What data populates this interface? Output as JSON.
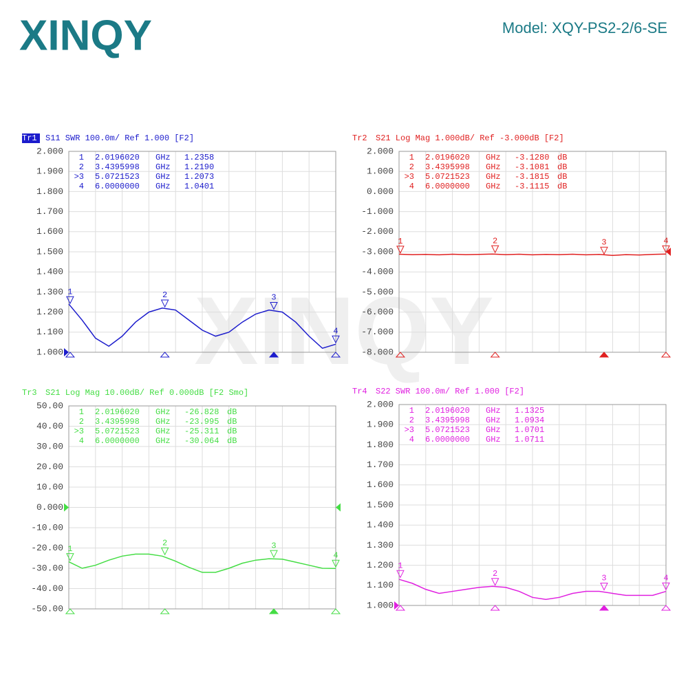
{
  "header": {
    "logo": "XINQY",
    "model": "Model:  XQY-PS2-2/6-SE"
  },
  "watermark": "XINQY",
  "chart_data": [
    {
      "type": "line",
      "trace": "Tr1",
      "trace_highlight": true,
      "title": "S11 SWR 100.0m/ Ref 1.000 [F2]",
      "color": "#1c1ccc",
      "x": [
        2.0,
        2.2,
        2.4,
        2.6,
        2.8,
        3.0,
        3.2,
        3.4,
        3.6,
        3.8,
        4.0,
        4.2,
        4.4,
        4.6,
        4.8,
        5.0,
        5.2,
        5.4,
        5.6,
        5.8,
        6.0
      ],
      "values": [
        1.24,
        1.16,
        1.07,
        1.03,
        1.08,
        1.15,
        1.2,
        1.22,
        1.21,
        1.16,
        1.11,
        1.08,
        1.1,
        1.15,
        1.19,
        1.21,
        1.2,
        1.15,
        1.08,
        1.02,
        1.04
      ],
      "xlim": [
        2,
        6
      ],
      "ylim": [
        1,
        2
      ],
      "grid": true,
      "ref_value": 1,
      "ref_side": "left",
      "yticks": [
        {
          "value": 2,
          "label": "2.000"
        },
        {
          "value": 1.9,
          "label": "1.900"
        },
        {
          "value": 1.8,
          "label": "1.800"
        },
        {
          "value": 1.7,
          "label": "1.700"
        },
        {
          "value": 1.6,
          "label": "1.600"
        },
        {
          "value": 1.5,
          "label": "1.500"
        },
        {
          "value": 1.4,
          "label": "1.400"
        },
        {
          "value": 1.3,
          "label": "1.300"
        },
        {
          "value": 1.2,
          "label": "1.200"
        },
        {
          "value": 1.1,
          "label": "1.100"
        },
        {
          "value": 1,
          "label": "1.000"
        }
      ],
      "markers": [
        {
          "row_label": "1",
          "label": "1",
          "freq": "2.0196020",
          "unit": "GHz",
          "value": "1.2358"
        },
        {
          "row_label": "2",
          "label": "2",
          "freq": "3.4395998",
          "unit": "GHz",
          "value": "1.2190"
        },
        {
          "row_label": ">3",
          "label": "3",
          "freq": "5.0721523",
          "unit": "GHz",
          "value": "1.2073"
        },
        {
          "row_label": "4",
          "label": "4",
          "freq": "6.0000000",
          "unit": "GHz",
          "value": "1.0401"
        }
      ]
    },
    {
      "type": "line",
      "trace": "Tr2",
      "trace_highlight": false,
      "title": "S21 Log Mag 1.000dB/ Ref -3.000dB [F2]",
      "color": "#e02020",
      "x": [
        2.0,
        2.2,
        2.4,
        2.6,
        2.8,
        3.0,
        3.2,
        3.4,
        3.6,
        3.8,
        4.0,
        4.2,
        4.4,
        4.6,
        4.8,
        5.0,
        5.2,
        5.4,
        5.6,
        5.8,
        6.0
      ],
      "values": [
        -3.12,
        -3.14,
        -3.13,
        -3.15,
        -3.12,
        -3.14,
        -3.13,
        -3.11,
        -3.14,
        -3.12,
        -3.15,
        -3.13,
        -3.14,
        -3.12,
        -3.15,
        -3.13,
        -3.18,
        -3.14,
        -3.16,
        -3.13,
        -3.11
      ],
      "xlim": [
        2,
        6
      ],
      "ylim": [
        -8,
        2
      ],
      "grid": true,
      "ref_value": -3,
      "ref_side": "right",
      "yticks": [
        {
          "value": 2,
          "label": "2.000"
        },
        {
          "value": 1,
          "label": "1.000"
        },
        {
          "value": 0,
          "label": "0.000"
        },
        {
          "value": -1,
          "label": "-1.000"
        },
        {
          "value": -2,
          "label": "-2.000"
        },
        {
          "value": -3,
          "label": "-3.000"
        },
        {
          "value": -4,
          "label": "-4.000"
        },
        {
          "value": -5,
          "label": "-5.000"
        },
        {
          "value": -6,
          "label": "-6.000"
        },
        {
          "value": -7,
          "label": "-7.000"
        },
        {
          "value": -8,
          "label": "-8.000"
        }
      ],
      "markers": [
        {
          "row_label": "1",
          "label": "1",
          "freq": "2.0196020",
          "unit": "GHz",
          "value": "-3.1280",
          "value_unit": "dB"
        },
        {
          "row_label": "2",
          "label": "2",
          "freq": "3.4395998",
          "unit": "GHz",
          "value": "-3.1081",
          "value_unit": "dB"
        },
        {
          "row_label": ">3",
          "label": "3",
          "freq": "5.0721523",
          "unit": "GHz",
          "value": "-3.1815",
          "value_unit": "dB"
        },
        {
          "row_label": "4",
          "label": "4",
          "freq": "6.0000000",
          "unit": "GHz",
          "value": "-3.1115",
          "value_unit": "dB"
        }
      ]
    },
    {
      "type": "line",
      "trace": "Tr3",
      "trace_highlight": false,
      "title": "S21 Log Mag 10.00dB/ Ref 0.000dB [F2 Smo]",
      "color": "#44dd44",
      "x": [
        2.0,
        2.2,
        2.4,
        2.6,
        2.8,
        3.0,
        3.2,
        3.4,
        3.6,
        3.8,
        4.0,
        4.2,
        4.4,
        4.6,
        4.8,
        5.0,
        5.2,
        5.4,
        5.6,
        5.8,
        6.0
      ],
      "values": [
        -26.8,
        -30,
        -28.5,
        -26,
        -24,
        -23,
        -23,
        -24,
        -26.5,
        -29.5,
        -32,
        -32,
        -30,
        -27.5,
        -26,
        -25.3,
        -25.5,
        -27,
        -28.5,
        -30,
        -30.1
      ],
      "xlim": [
        2,
        6
      ],
      "ylim": [
        -50,
        50
      ],
      "grid": true,
      "ref_value": 0,
      "ref_side": "both",
      "yticks": [
        {
          "value": 50,
          "label": "50.00"
        },
        {
          "value": 40,
          "label": "40.00"
        },
        {
          "value": 30,
          "label": "30.00"
        },
        {
          "value": 20,
          "label": "20.00"
        },
        {
          "value": 10,
          "label": "10.00"
        },
        {
          "value": 0,
          "label": "0.000"
        },
        {
          "value": -10,
          "label": "-10.00"
        },
        {
          "value": -20,
          "label": "-20.00"
        },
        {
          "value": -30,
          "label": "-30.00"
        },
        {
          "value": -40,
          "label": "-40.00"
        },
        {
          "value": -50,
          "label": "-50.00"
        }
      ],
      "markers": [
        {
          "row_label": "1",
          "label": "1",
          "freq": "2.0196020",
          "unit": "GHz",
          "value": "-26.828",
          "value_unit": "dB"
        },
        {
          "row_label": "2",
          "label": "2",
          "freq": "3.4395998",
          "unit": "GHz",
          "value": "-23.995",
          "value_unit": "dB"
        },
        {
          "row_label": ">3",
          "label": "3",
          "freq": "5.0721523",
          "unit": "GHz",
          "value": "-25.311",
          "value_unit": "dB"
        },
        {
          "row_label": "4",
          "label": "4",
          "freq": "6.0000000",
          "unit": "GHz",
          "value": "-30.064",
          "value_unit": "dB"
        }
      ]
    },
    {
      "type": "line",
      "trace": "Tr4",
      "trace_highlight": false,
      "title": "S22 SWR 100.0m/ Ref 1.000 [F2]",
      "color": "#e020e0",
      "x": [
        2.0,
        2.2,
        2.4,
        2.6,
        2.8,
        3.0,
        3.2,
        3.4,
        3.6,
        3.8,
        4.0,
        4.2,
        4.4,
        4.6,
        4.8,
        5.0,
        5.2,
        5.4,
        5.6,
        5.8,
        6.0
      ],
      "values": [
        1.13,
        1.11,
        1.08,
        1.06,
        1.07,
        1.08,
        1.09,
        1.095,
        1.09,
        1.07,
        1.04,
        1.03,
        1.04,
        1.06,
        1.07,
        1.07,
        1.06,
        1.05,
        1.05,
        1.05,
        1.07
      ],
      "xlim": [
        2,
        6
      ],
      "ylim": [
        1,
        2
      ],
      "grid": true,
      "ref_value": 1,
      "ref_side": "left",
      "yticks": [
        {
          "value": 2,
          "label": "2.000"
        },
        {
          "value": 1.9,
          "label": "1.900"
        },
        {
          "value": 1.8,
          "label": "1.800"
        },
        {
          "value": 1.7,
          "label": "1.700"
        },
        {
          "value": 1.6,
          "label": "1.600"
        },
        {
          "value": 1.5,
          "label": "1.500"
        },
        {
          "value": 1.4,
          "label": "1.400"
        },
        {
          "value": 1.3,
          "label": "1.300"
        },
        {
          "value": 1.2,
          "label": "1.200"
        },
        {
          "value": 1.1,
          "label": "1.100"
        },
        {
          "value": 1,
          "label": "1.000"
        }
      ],
      "markers": [
        {
          "row_label": "1",
          "label": "1",
          "freq": "2.0196020",
          "unit": "GHz",
          "value": "1.1325"
        },
        {
          "row_label": "2",
          "label": "2",
          "freq": "3.4395998",
          "unit": "GHz",
          "value": "1.0934"
        },
        {
          "row_label": ">3",
          "label": "3",
          "freq": "5.0721523",
          "unit": "GHz",
          "value": "1.0701"
        },
        {
          "row_label": "4",
          "label": "4",
          "freq": "6.0000000",
          "unit": "GHz",
          "value": "1.0711"
        }
      ]
    }
  ]
}
